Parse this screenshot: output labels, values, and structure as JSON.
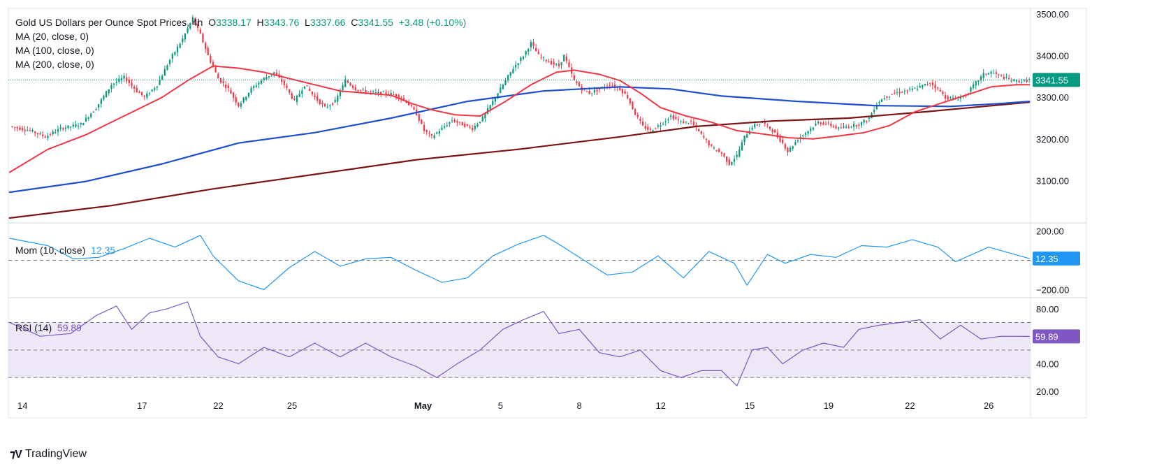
{
  "header": {
    "title": "Gold US Dollars per Ounce Spot Prices, 4h",
    "o_label": "O",
    "o": "3338.17",
    "h_label": "H",
    "h": "3343.76",
    "l_label": "L",
    "l": "3337.66",
    "c_label": "C",
    "c": "3341.55",
    "change": "+3.48 (+0.10%)"
  },
  "ma_legend": [
    "MA (20, close, 0)",
    "MA (100, close, 0)",
    "MA (200, close, 0)"
  ],
  "mom_legend": {
    "label": "Mom (10, close)",
    "value": "12.35"
  },
  "rsi_legend": {
    "label": "RSI (14)",
    "value": "59.89"
  },
  "brand": "TradingView",
  "colors": {
    "up": "#089981",
    "down": "#f23645",
    "ma20": "#f23645",
    "ma100": "#1e4fd1",
    "ma200": "#7b1414",
    "mom": "#2196f3",
    "rsi": "#7e57c2",
    "rsi_band": "#ede7f6"
  },
  "chart_data": [
    {
      "type": "candlestick",
      "title": "Gold US Dollars per Ounce Spot Prices, 4h",
      "ylim": [
        3000,
        3510
      ],
      "y_ticks": [
        "3500.00",
        "3400.00",
        "3300.00",
        "3200.00",
        "3100.00"
      ],
      "x_ticks": [
        "14",
        "17",
        "22",
        "25",
        "May",
        "5",
        "8",
        "12",
        "15",
        "19",
        "22",
        "26"
      ],
      "last_price": "3341.55",
      "close_path": [
        [
          0,
          3230
        ],
        [
          8,
          3220
        ],
        [
          14,
          3205
        ],
        [
          20,
          3225
        ],
        [
          28,
          3235
        ],
        [
          34,
          3275
        ],
        [
          40,
          3330
        ],
        [
          45,
          3348
        ],
        [
          50,
          3315
        ],
        [
          53,
          3300
        ],
        [
          58,
          3330
        ],
        [
          63,
          3390
        ],
        [
          68,
          3440
        ],
        [
          72,
          3490
        ],
        [
          75,
          3450
        ],
        [
          78,
          3400
        ],
        [
          82,
          3345
        ],
        [
          86,
          3320
        ],
        [
          90,
          3280
        ],
        [
          95,
          3320
        ],
        [
          100,
          3345
        ],
        [
          104,
          3360
        ],
        [
          108,
          3330
        ],
        [
          112,
          3290
        ],
        [
          116,
          3330
        ],
        [
          120,
          3300
        ],
        [
          124,
          3275
        ],
        [
          128,
          3290
        ],
        [
          132,
          3340
        ],
        [
          136,
          3320
        ],
        [
          140,
          3315
        ],
        [
          144,
          3310
        ],
        [
          148,
          3310
        ],
        [
          152,
          3305
        ],
        [
          156,
          3290
        ],
        [
          160,
          3260
        ],
        [
          163,
          3220
        ],
        [
          166,
          3205
        ],
        [
          170,
          3225
        ],
        [
          174,
          3245
        ],
        [
          178,
          3235
        ],
        [
          182,
          3225
        ],
        [
          186,
          3250
        ],
        [
          190,
          3290
        ],
        [
          194,
          3330
        ],
        [
          198,
          3370
        ],
        [
          202,
          3400
        ],
        [
          205,
          3430
        ],
        [
          208,
          3400
        ],
        [
          212,
          3385
        ],
        [
          216,
          3375
        ],
        [
          218,
          3400
        ],
        [
          222,
          3340
        ],
        [
          225,
          3320
        ],
        [
          228,
          3310
        ],
        [
          232,
          3320
        ],
        [
          236,
          3330
        ],
        [
          240,
          3320
        ],
        [
          243,
          3300
        ],
        [
          246,
          3260
        ],
        [
          249,
          3230
        ],
        [
          252,
          3220
        ],
        [
          256,
          3235
        ],
        [
          260,
          3255
        ],
        [
          264,
          3240
        ],
        [
          268,
          3240
        ],
        [
          272,
          3210
        ],
        [
          276,
          3180
        ],
        [
          280,
          3165
        ],
        [
          283,
          3140
        ],
        [
          286,
          3160
        ],
        [
          289,
          3205
        ],
        [
          292,
          3230
        ],
        [
          296,
          3240
        ],
        [
          300,
          3220
        ],
        [
          304,
          3190
        ],
        [
          306,
          3170
        ],
        [
          310,
          3200
        ],
        [
          314,
          3220
        ],
        [
          318,
          3240
        ],
        [
          322,
          3235
        ],
        [
          326,
          3225
        ],
        [
          330,
          3230
        ],
        [
          334,
          3235
        ],
        [
          338,
          3250
        ],
        [
          341,
          3285
        ],
        [
          344,
          3300
        ],
        [
          348,
          3310
        ],
        [
          352,
          3315
        ],
        [
          356,
          3320
        ],
        [
          360,
          3330
        ],
        [
          362,
          3335
        ],
        [
          365,
          3320
        ],
        [
          368,
          3300
        ],
        [
          372,
          3295
        ],
        [
          376,
          3305
        ],
        [
          380,
          3335
        ],
        [
          383,
          3355
        ],
        [
          386,
          3360
        ],
        [
          390,
          3350
        ],
        [
          394,
          3340
        ],
        [
          398,
          3338
        ],
        [
          401,
          3341.55
        ]
      ],
      "ma20_path": [
        [
          0,
          3120
        ],
        [
          15,
          3175
        ],
        [
          30,
          3210
        ],
        [
          40,
          3240
        ],
        [
          50,
          3270
        ],
        [
          60,
          3300
        ],
        [
          70,
          3340
        ],
        [
          80,
          3375
        ],
        [
          90,
          3370
        ],
        [
          100,
          3360
        ],
        [
          110,
          3345
        ],
        [
          120,
          3330
        ],
        [
          130,
          3315
        ],
        [
          140,
          3310
        ],
        [
          150,
          3305
        ],
        [
          158,
          3285
        ],
        [
          166,
          3270
        ],
        [
          175,
          3258
        ],
        [
          185,
          3255
        ],
        [
          195,
          3290
        ],
        [
          205,
          3330
        ],
        [
          215,
          3360
        ],
        [
          222,
          3365
        ],
        [
          232,
          3355
        ],
        [
          240,
          3340
        ],
        [
          248,
          3310
        ],
        [
          256,
          3275
        ],
        [
          266,
          3255
        ],
        [
          276,
          3240
        ],
        [
          286,
          3220
        ],
        [
          296,
          3212
        ],
        [
          306,
          3203
        ],
        [
          316,
          3200
        ],
        [
          326,
          3207
        ],
        [
          336,
          3215
        ],
        [
          346,
          3232
        ],
        [
          356,
          3265
        ],
        [
          366,
          3285
        ],
        [
          376,
          3305
        ],
        [
          386,
          3325
        ],
        [
          396,
          3330
        ],
        [
          401,
          3330
        ]
      ],
      "ma100_path": [
        [
          0,
          3072
        ],
        [
          30,
          3098
        ],
        [
          60,
          3140
        ],
        [
          90,
          3190
        ],
        [
          120,
          3215
        ],
        [
          150,
          3250
        ],
        [
          180,
          3290
        ],
        [
          210,
          3315
        ],
        [
          240,
          3325
        ],
        [
          260,
          3320
        ],
        [
          280,
          3303
        ],
        [
          310,
          3290
        ],
        [
          340,
          3280
        ],
        [
          370,
          3278
        ],
        [
          390,
          3285
        ],
        [
          401,
          3290
        ]
      ],
      "ma200_path": [
        [
          0,
          3010
        ],
        [
          40,
          3040
        ],
        [
          80,
          3080
        ],
        [
          120,
          3115
        ],
        [
          160,
          3150
        ],
        [
          200,
          3175
        ],
        [
          240,
          3205
        ],
        [
          270,
          3230
        ],
        [
          300,
          3243
        ],
        [
          330,
          3250
        ],
        [
          360,
          3265
        ],
        [
          401,
          3288
        ]
      ]
    },
    {
      "type": "line",
      "title": "Mom (10, close)",
      "ylim": [
        -250,
        250
      ],
      "y_ticks": [
        "200.00",
        "-200.00"
      ],
      "last_value": "12.35",
      "path": [
        [
          0,
          150
        ],
        [
          15,
          100
        ],
        [
          25,
          10
        ],
        [
          35,
          20
        ],
        [
          45,
          80
        ],
        [
          55,
          150
        ],
        [
          65,
          90
        ],
        [
          75,
          170
        ],
        [
          80,
          30
        ],
        [
          90,
          -140
        ],
        [
          100,
          -200
        ],
        [
          110,
          -50
        ],
        [
          120,
          60
        ],
        [
          130,
          -40
        ],
        [
          140,
          10
        ],
        [
          150,
          20
        ],
        [
          160,
          -70
        ],
        [
          170,
          -150
        ],
        [
          180,
          -120
        ],
        [
          190,
          30
        ],
        [
          200,
          110
        ],
        [
          210,
          170
        ],
        [
          215,
          120
        ],
        [
          225,
          10
        ],
        [
          235,
          -100
        ],
        [
          245,
          -80
        ],
        [
          255,
          30
        ],
        [
          265,
          -120
        ],
        [
          275,
          60
        ],
        [
          285,
          -20
        ],
        [
          290,
          -170
        ],
        [
          298,
          40
        ],
        [
          305,
          -20
        ],
        [
          315,
          40
        ],
        [
          325,
          20
        ],
        [
          335,
          100
        ],
        [
          345,
          90
        ],
        [
          355,
          140
        ],
        [
          365,
          90
        ],
        [
          372,
          -10
        ],
        [
          385,
          90
        ],
        [
          401,
          12.35
        ]
      ]
    },
    {
      "type": "line",
      "title": "RSI (14)",
      "ylim": [
        20,
        87
      ],
      "y_ticks": [
        "80.00",
        "60.00",
        "40.00",
        "20.00"
      ],
      "last_value": "59.89",
      "path": [
        [
          0,
          70
        ],
        [
          12,
          60
        ],
        [
          24,
          62
        ],
        [
          34,
          75
        ],
        [
          42,
          82
        ],
        [
          48,
          65
        ],
        [
          55,
          77
        ],
        [
          62,
          80
        ],
        [
          70,
          85
        ],
        [
          75,
          60
        ],
        [
          82,
          45
        ],
        [
          90,
          40
        ],
        [
          100,
          52
        ],
        [
          110,
          45
        ],
        [
          120,
          55
        ],
        [
          130,
          45
        ],
        [
          140,
          55
        ],
        [
          150,
          45
        ],
        [
          160,
          38
        ],
        [
          168,
          30
        ],
        [
          176,
          40
        ],
        [
          185,
          50
        ],
        [
          194,
          65
        ],
        [
          202,
          72
        ],
        [
          210,
          78
        ],
        [
          216,
          62
        ],
        [
          224,
          65
        ],
        [
          232,
          48
        ],
        [
          240,
          45
        ],
        [
          248,
          50
        ],
        [
          256,
          35
        ],
        [
          264,
          30
        ],
        [
          272,
          35
        ],
        [
          280,
          35
        ],
        [
          286,
          24
        ],
        [
          292,
          50
        ],
        [
          298,
          52
        ],
        [
          304,
          40
        ],
        [
          312,
          50
        ],
        [
          320,
          55
        ],
        [
          328,
          52
        ],
        [
          334,
          65
        ],
        [
          342,
          68
        ],
        [
          350,
          70
        ],
        [
          358,
          72
        ],
        [
          366,
          58
        ],
        [
          374,
          68
        ],
        [
          382,
          58
        ],
        [
          390,
          60
        ],
        [
          401,
          59.89
        ]
      ]
    }
  ]
}
